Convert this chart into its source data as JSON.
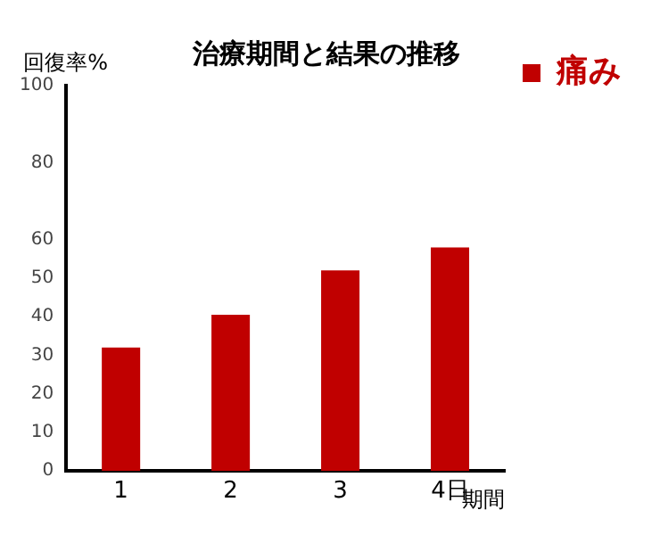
{
  "chart_data": {
    "type": "bar",
    "title": "治療期間と結果の推移",
    "xlabel": "期間",
    "ylabel": "回復率%",
    "categories": [
      "1",
      "2",
      "3",
      "4日"
    ],
    "series": [
      {
        "name": "痛み",
        "color": "#c00000",
        "values": [
          32,
          40.5,
          52,
          58
        ]
      }
    ],
    "ylim": [
      0,
      100
    ],
    "yticks": [
      0,
      10,
      20,
      30,
      40,
      50,
      60,
      80,
      100
    ],
    "grid": false,
    "legend": "top right"
  }
}
